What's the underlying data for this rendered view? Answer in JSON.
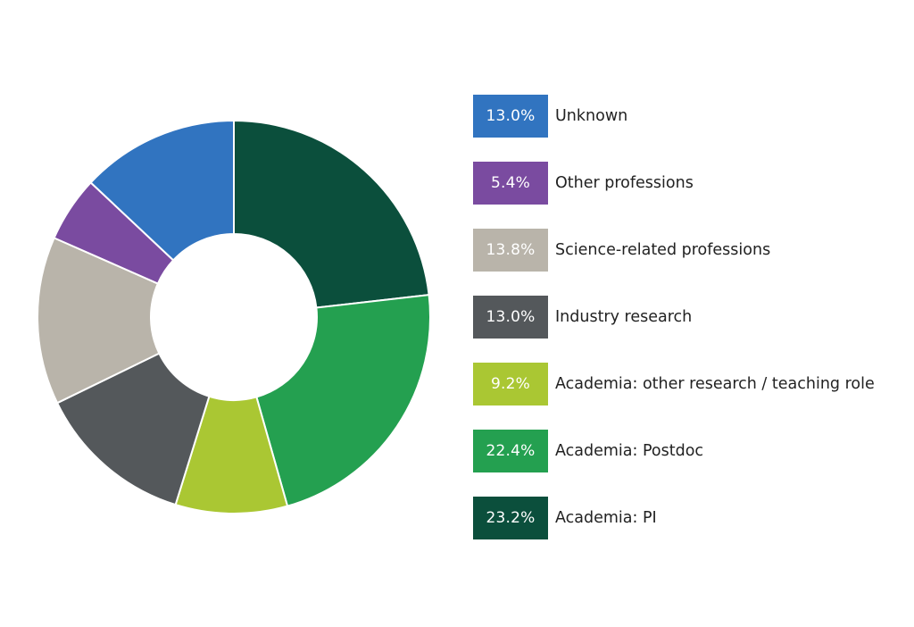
{
  "chart_data": {
    "type": "pie",
    "variant": "donut",
    "title": "",
    "legend_position": "right",
    "series": [
      {
        "name": "Academia: PI",
        "value": 23.2,
        "label": "23.2%",
        "color": "#0b4f3c"
      },
      {
        "name": "Academia: Postdoc",
        "value": 22.4,
        "label": "22.4%",
        "color": "#24a050"
      },
      {
        "name": "Academia: other research / teaching role",
        "value": 9.2,
        "label": "9.2%",
        "color": "#aac733"
      },
      {
        "name": "Industry research",
        "value": 13.0,
        "label": "13.0%",
        "color": "#54585b"
      },
      {
        "name": "Science-related professions",
        "value": 13.8,
        "label": "13.8%",
        "color": "#b9b4aa"
      },
      {
        "name": "Other professions",
        "value": 5.4,
        "label": "5.4%",
        "color": "#7a4ba0"
      },
      {
        "name": "Unknown",
        "value": 13.0,
        "label": "13.0%",
        "color": "#3174c0"
      }
    ],
    "legend_order": [
      "Unknown",
      "Other professions",
      "Science-related professions",
      "Industry research",
      "Academia: other research / teaching role",
      "Academia: Postdoc",
      "Academia: PI"
    ]
  }
}
